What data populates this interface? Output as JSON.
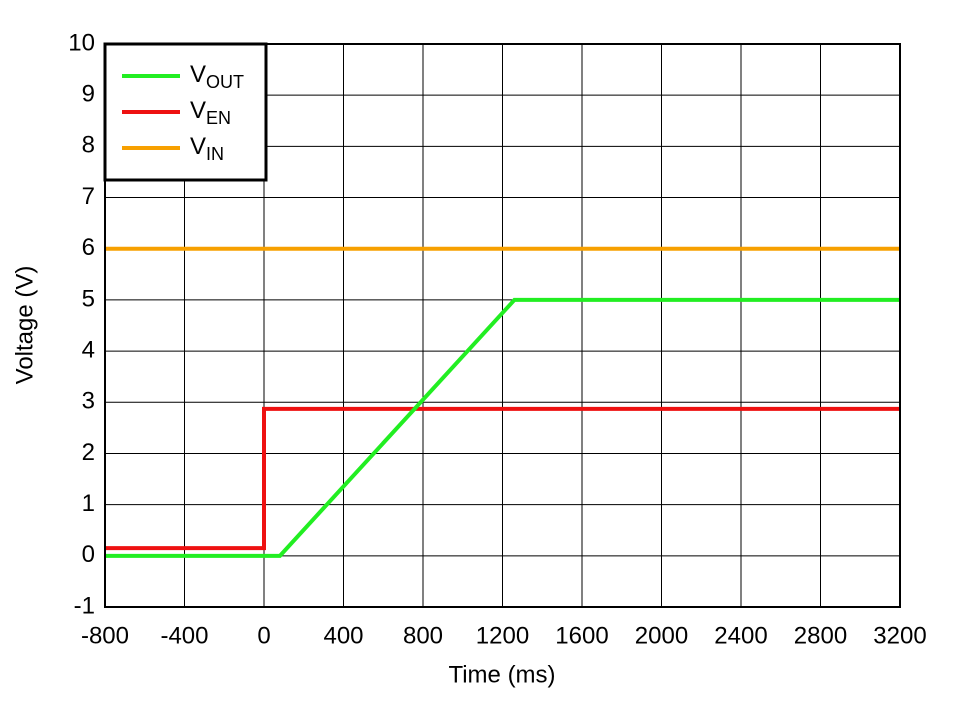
{
  "chart_data": {
    "type": "line",
    "xlabel": "Time (ms)",
    "ylabel": "Voltage (V)",
    "xlim": [
      -800,
      3200
    ],
    "ylim": [
      -1,
      10
    ],
    "xticks": [
      -800,
      -400,
      0,
      400,
      800,
      1200,
      1600,
      2000,
      2400,
      2800,
      3200
    ],
    "yticks": [
      -1,
      0,
      1,
      2,
      3,
      4,
      5,
      6,
      7,
      8,
      9,
      10
    ],
    "grid": true,
    "legend": "upper left",
    "series": [
      {
        "name": "V",
        "name_sub": "OUT",
        "color": "#22ee22",
        "x": [
          -800,
          80,
          1260,
          3200
        ],
        "values": [
          0,
          0,
          5,
          5
        ]
      },
      {
        "name": "V",
        "name_sub": "EN",
        "color": "#ee1111",
        "x": [
          -800,
          0,
          0,
          3200
        ],
        "values": [
          0.15,
          0.15,
          2.87,
          2.87
        ]
      },
      {
        "name": "V",
        "name_sub": "IN",
        "color": "#f7a000",
        "x": [
          -800,
          3200
        ],
        "values": [
          6,
          6
        ]
      }
    ]
  }
}
